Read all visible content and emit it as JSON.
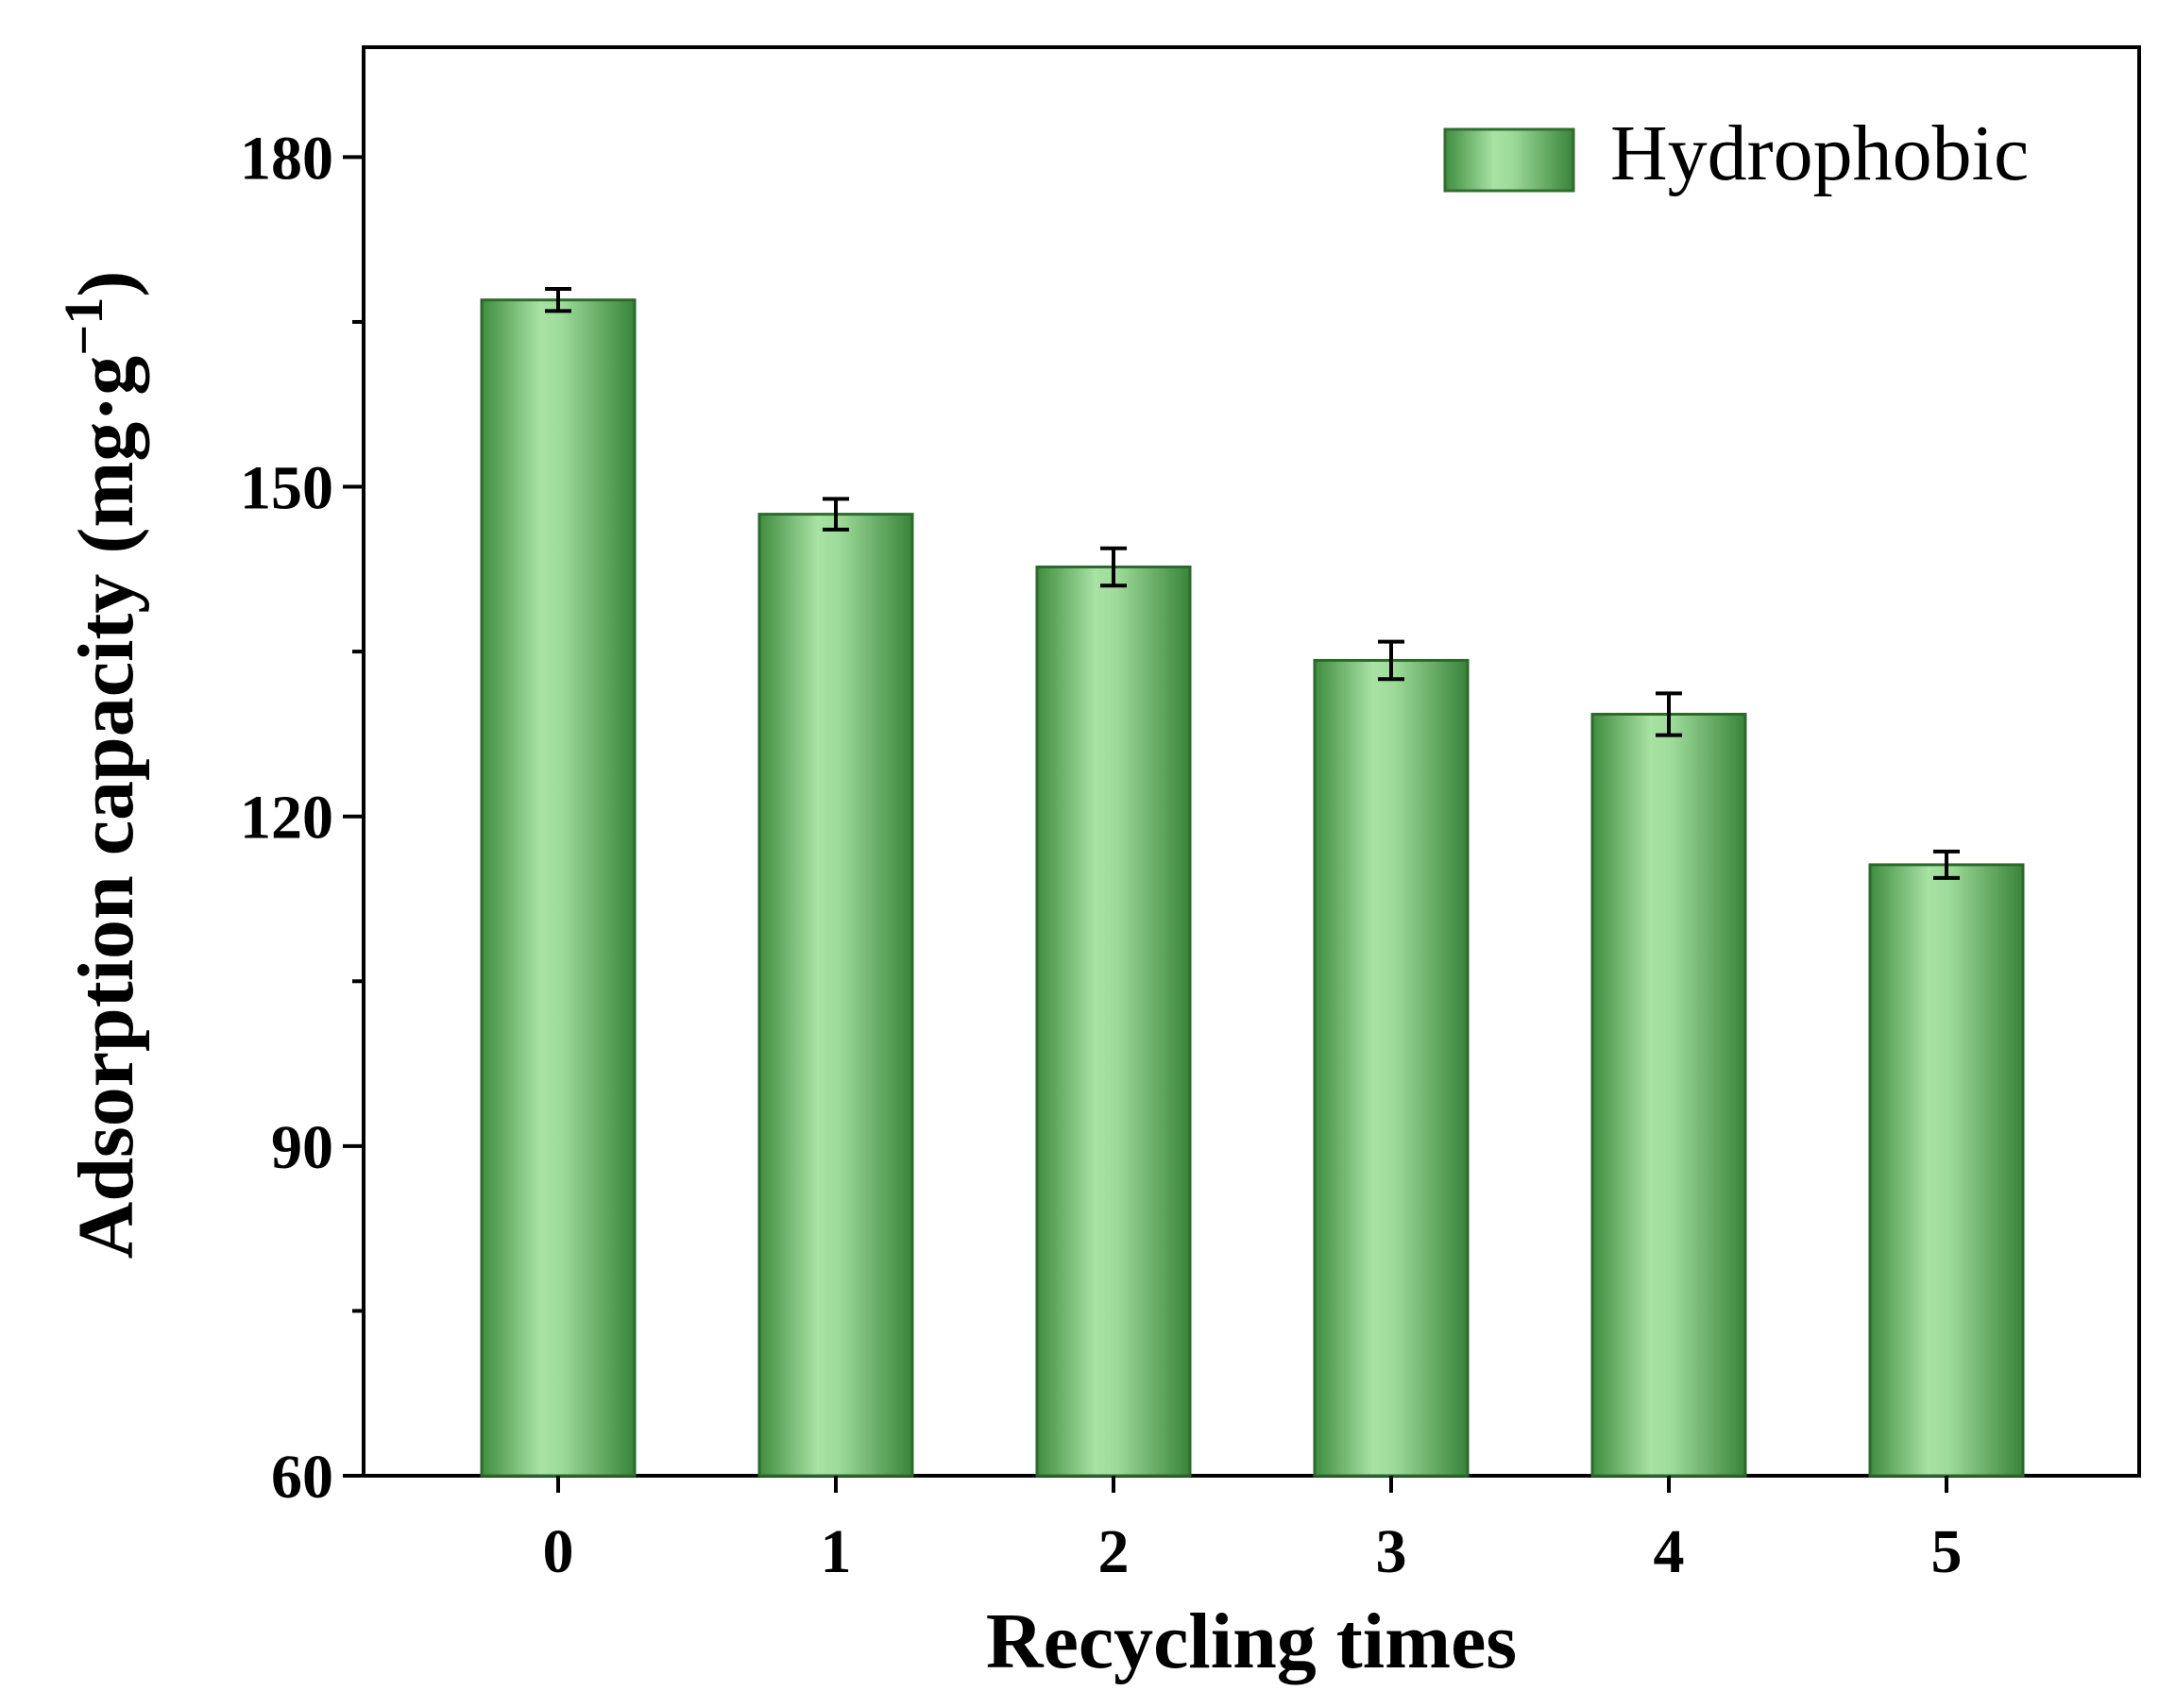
{
  "chart_data": {
    "type": "bar",
    "categories": [
      "0",
      "1",
      "2",
      "3",
      "4",
      "5"
    ],
    "series": [
      {
        "name": "Hydrophobic",
        "values": [
          167,
          147.5,
          142.7,
          134.2,
          129.3,
          115.6
        ],
        "errors": [
          1.0,
          1.4,
          1.7,
          1.7,
          1.9,
          1.2
        ]
      }
    ],
    "xlabel": "Recycling times",
    "ylabel_main": "Adsorption capacity (mg·g",
    "ylabel_sup": "−1",
    "ylabel_close": ")",
    "ylim": [
      60,
      190
    ],
    "yticks": [
      60,
      90,
      120,
      150,
      180
    ],
    "y_minor_ticks": [
      75,
      105,
      135,
      165
    ],
    "yticks_labels": [
      "60",
      "90",
      "120",
      "150",
      "180"
    ],
    "grid": false,
    "legend_position": "top-right",
    "colors": {
      "bar_edge": "#2f7a2f",
      "bar_dark": "#3a8a3c",
      "bar_light": "#a6e0a2",
      "axis": "#000000"
    }
  }
}
